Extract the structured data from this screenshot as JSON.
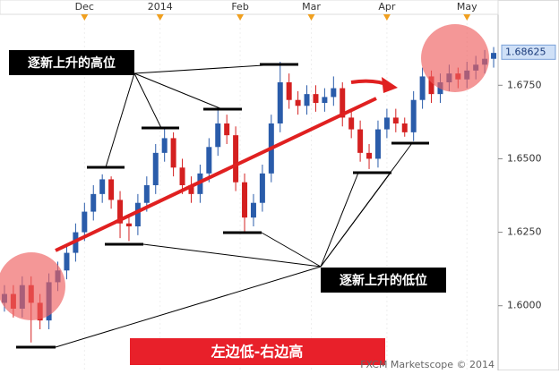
{
  "chart_data": {
    "type": "candlestick",
    "up_color": "#2a5caa",
    "down_color": "#d42020",
    "xlim": [
      -0.5,
      55.5
    ],
    "ylim": [
      1.578,
      1.704
    ],
    "xticks": [
      {
        "value": 9,
        "label": "Dec"
      },
      {
        "value": 17.5,
        "label": "2014"
      },
      {
        "value": 26.5,
        "label": "Feb"
      },
      {
        "value": 34.5,
        "label": "Mar"
      },
      {
        "value": 43,
        "label": "Apr"
      },
      {
        "value": 52,
        "label": "May"
      }
    ],
    "yticks": [
      {
        "value": 1.6,
        "label": "1.6000"
      },
      {
        "value": 1.625,
        "label": "1.6250"
      },
      {
        "value": 1.65,
        "label": "1.6500"
      },
      {
        "value": 1.675,
        "label": "1.6750"
      }
    ],
    "last_price": 1.68625,
    "series": {
      "open": [
        1.601,
        1.604,
        1.599,
        1.607,
        1.601,
        1.595,
        1.608,
        1.612,
        1.618,
        1.625,
        1.632,
        1.638,
        1.643,
        1.636,
        1.628,
        1.627,
        1.635,
        1.641,
        1.652,
        1.657,
        1.647,
        1.641,
        1.638,
        1.645,
        1.654,
        1.662,
        1.658,
        1.642,
        1.63,
        1.635,
        1.645,
        1.662,
        1.676,
        1.67,
        1.668,
        1.672,
        1.669,
        1.671,
        1.674,
        1.664,
        1.66,
        1.652,
        1.65,
        1.66,
        1.664,
        1.662,
        1.659,
        1.67,
        1.678,
        1.672,
        1.676,
        1.679,
        1.677,
        1.68,
        1.682,
        1.684
      ],
      "high": [
        1.607,
        1.607,
        1.61,
        1.61,
        1.604,
        1.611,
        1.615,
        1.621,
        1.628,
        1.635,
        1.641,
        1.6447,
        1.644,
        1.639,
        1.631,
        1.638,
        1.644,
        1.655,
        1.6607,
        1.659,
        1.65,
        1.644,
        1.648,
        1.657,
        1.667,
        1.665,
        1.661,
        1.645,
        1.638,
        1.648,
        1.665,
        1.683,
        1.679,
        1.673,
        1.675,
        1.675,
        1.674,
        1.678,
        1.676,
        1.667,
        1.663,
        1.655,
        1.663,
        1.667,
        1.667,
        1.664,
        1.673,
        1.681,
        1.68,
        1.679,
        1.682,
        1.681,
        1.683,
        1.685,
        1.687,
        1.688
      ],
      "low": [
        1.598,
        1.596,
        1.596,
        1.5875,
        1.592,
        1.592,
        1.605,
        1.609,
        1.615,
        1.622,
        1.629,
        1.635,
        1.633,
        1.623,
        1.622,
        1.624,
        1.632,
        1.638,
        1.649,
        1.644,
        1.638,
        1.635,
        1.635,
        1.642,
        1.651,
        1.655,
        1.639,
        1.625,
        1.627,
        1.632,
        1.642,
        1.659,
        1.667,
        1.665,
        1.665,
        1.666,
        1.666,
        1.668,
        1.661,
        1.657,
        1.649,
        1.6465,
        1.647,
        1.657,
        1.659,
        1.6575,
        1.656,
        1.667,
        1.669,
        1.669,
        1.673,
        1.674,
        1.674,
        1.677,
        1.679,
        1.681
      ],
      "close": [
        1.604,
        1.599,
        1.607,
        1.601,
        1.595,
        1.608,
        1.612,
        1.618,
        1.625,
        1.632,
        1.638,
        1.643,
        1.636,
        1.628,
        1.627,
        1.635,
        1.641,
        1.652,
        1.657,
        1.647,
        1.641,
        1.638,
        1.645,
        1.654,
        1.662,
        1.658,
        1.642,
        1.63,
        1.635,
        1.645,
        1.662,
        1.676,
        1.67,
        1.668,
        1.672,
        1.669,
        1.671,
        1.674,
        1.664,
        1.66,
        1.652,
        1.65,
        1.66,
        1.664,
        1.662,
        1.659,
        1.67,
        1.678,
        1.672,
        1.676,
        1.679,
        1.677,
        1.68,
        1.682,
        1.684,
        1.686
      ]
    },
    "annotations": {
      "highs": "逐新上升的高位",
      "lows": "逐新上升的低位",
      "banner": "左边低-右边高",
      "credit": "FXCM Marketscope © 2014"
    }
  }
}
